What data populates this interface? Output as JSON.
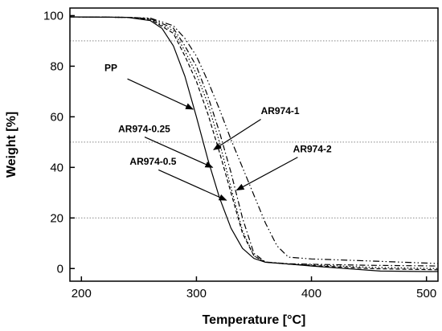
{
  "chart_data": {
    "type": "line",
    "title": "",
    "xlabel": "Temperature [°C]",
    "ylabel": "Weight [%]",
    "xlim": [
      190,
      510
    ],
    "ylim": [
      -5,
      103
    ],
    "xticks": [
      200,
      300,
      400,
      500
    ],
    "yticks": [
      0,
      20,
      40,
      60,
      80,
      100
    ],
    "reference_lines": [
      90,
      50,
      20
    ],
    "legend": "none",
    "colors": {
      "line": "#000000",
      "reference": "#888888"
    },
    "series": [
      {
        "name": "PP",
        "style": "solid",
        "points": [
          [
            190,
            99.5
          ],
          [
            240,
            99.3
          ],
          [
            260,
            98
          ],
          [
            270,
            95
          ],
          [
            280,
            88
          ],
          [
            290,
            76
          ],
          [
            300,
            60
          ],
          [
            310,
            43
          ],
          [
            320,
            28
          ],
          [
            330,
            16
          ],
          [
            340,
            8
          ],
          [
            350,
            4
          ],
          [
            360,
            2.5
          ],
          [
            380,
            1.8
          ],
          [
            400,
            1
          ],
          [
            430,
            0
          ],
          [
            460,
            -1
          ],
          [
            500,
            -1.2
          ],
          [
            510,
            -1.2
          ]
        ]
      },
      {
        "name": "AR974-0.25",
        "style": "dash",
        "points": [
          [
            190,
            99.5
          ],
          [
            240,
            99.3
          ],
          [
            260,
            98.5
          ],
          [
            280,
            93
          ],
          [
            290,
            84
          ],
          [
            300,
            74
          ],
          [
            310,
            61
          ],
          [
            320,
            46
          ],
          [
            330,
            30
          ],
          [
            340,
            14
          ],
          [
            350,
            5
          ],
          [
            360,
            2.5
          ],
          [
            380,
            1.8
          ],
          [
            400,
            1.2
          ],
          [
            450,
            0
          ],
          [
            510,
            -0.5
          ]
        ]
      },
      {
        "name": "AR974-0.5",
        "style": "dot",
        "points": [
          [
            190,
            99.5
          ],
          [
            240,
            99.3
          ],
          [
            260,
            98.5
          ],
          [
            280,
            94
          ],
          [
            290,
            86
          ],
          [
            300,
            77
          ],
          [
            310,
            65
          ],
          [
            320,
            50
          ],
          [
            330,
            32
          ],
          [
            340,
            15
          ],
          [
            350,
            5
          ],
          [
            360,
            2.5
          ],
          [
            380,
            1.8
          ],
          [
            400,
            1.5
          ],
          [
            450,
            0.5
          ],
          [
            510,
            0
          ]
        ]
      },
      {
        "name": "AR974-1",
        "style": "dashdot",
        "points": [
          [
            190,
            99.5
          ],
          [
            240,
            99.3
          ],
          [
            260,
            98.8
          ],
          [
            280,
            95
          ],
          [
            290,
            88
          ],
          [
            300,
            80
          ],
          [
            310,
            68
          ],
          [
            320,
            54
          ],
          [
            330,
            38
          ],
          [
            340,
            20
          ],
          [
            350,
            6
          ],
          [
            360,
            2.6
          ],
          [
            380,
            1.9
          ],
          [
            400,
            1.7
          ],
          [
            450,
            1.3
          ],
          [
            510,
            1
          ]
        ]
      },
      {
        "name": "AR974-2",
        "style": "dashdotdot",
        "points": [
          [
            190,
            99.5
          ],
          [
            240,
            99.3
          ],
          [
            260,
            99
          ],
          [
            280,
            96
          ],
          [
            290,
            91
          ],
          [
            300,
            84
          ],
          [
            310,
            74
          ],
          [
            320,
            63
          ],
          [
            330,
            51
          ],
          [
            340,
            40
          ],
          [
            350,
            29
          ],
          [
            360,
            18
          ],
          [
            370,
            9
          ],
          [
            380,
            4.5
          ],
          [
            400,
            3.8
          ],
          [
            450,
            3
          ],
          [
            510,
            2
          ]
        ]
      }
    ],
    "annotations": [
      {
        "label": "PP",
        "text_at": [
          220,
          78
        ],
        "arrow_from": [
          240,
          75
        ],
        "arrow_to": [
          297,
          63
        ]
      },
      {
        "label": "AR974-1",
        "text_at": [
          356,
          61
        ],
        "arrow_from": [
          356,
          59
        ],
        "arrow_to": [
          315,
          47
        ]
      },
      {
        "label": "AR974-0.25",
        "text_at": [
          232,
          54
        ],
        "arrow_from": [
          255,
          52
        ],
        "arrow_to": [
          314,
          40
        ]
      },
      {
        "label": "AR974-2",
        "text_at": [
          384,
          46
        ],
        "arrow_from": [
          388,
          44
        ],
        "arrow_to": [
          335,
          31
        ]
      },
      {
        "label": "AR974-0.5",
        "text_at": [
          242,
          41
        ],
        "arrow_from": [
          267,
          39
        ],
        "arrow_to": [
          326,
          27
        ]
      }
    ]
  }
}
